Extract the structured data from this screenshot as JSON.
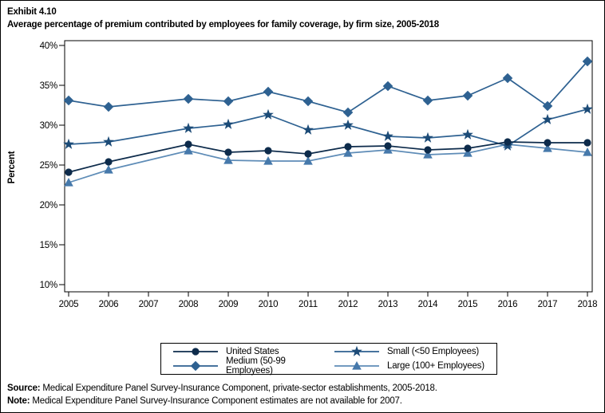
{
  "title": {
    "exhibit": "Exhibit 4.10",
    "text": "Average percentage of premium contributed by employees for family coverage, by firm size, 2005-2018"
  },
  "chart_data": {
    "type": "line",
    "x": [
      2005,
      2006,
      2007,
      2008,
      2009,
      2010,
      2011,
      2012,
      2013,
      2014,
      2015,
      2016,
      2017,
      2018
    ],
    "xlabel": "",
    "ylabel": "Percent",
    "ylim": [
      10,
      40
    ],
    "ytick_step": 5,
    "ytick_labels": [
      "10%",
      "15%",
      "20%",
      "25%",
      "30%",
      "35%",
      "40%"
    ],
    "grid": false,
    "legend_position": "bottom-center",
    "missing_note": "2007 estimates not available; lines connect 2006 to 2008",
    "series": [
      {
        "name": "United States",
        "marker": "circle",
        "color": "#0d2b4b",
        "line_color": "#0d2b4b",
        "values": [
          24.1,
          25.4,
          null,
          27.6,
          26.6,
          26.8,
          26.4,
          27.3,
          27.4,
          26.9,
          27.1,
          27.9,
          27.8,
          27.8
        ]
      },
      {
        "name": "Small (<50 Employees)",
        "marker": "star",
        "color": "#1c4b77",
        "line_color": "#2e6191",
        "values": [
          27.6,
          27.9,
          null,
          29.6,
          30.1,
          31.3,
          29.4,
          30.0,
          28.6,
          28.4,
          28.8,
          27.4,
          30.7,
          32.0
        ]
      },
      {
        "name": "Medium (50-99 Employees)",
        "marker": "diamond",
        "color": "#2e6191",
        "line_color": "#2e6191",
        "values": [
          33.1,
          32.3,
          null,
          33.3,
          33.0,
          34.2,
          33.0,
          31.6,
          34.9,
          33.1,
          33.7,
          35.9,
          32.4,
          38.0
        ]
      },
      {
        "name": "Large (100+ Employees)",
        "marker": "triangle",
        "color": "#4679ab",
        "line_color": "#5e8cb7",
        "values": [
          22.8,
          24.4,
          null,
          26.8,
          25.6,
          25.5,
          25.5,
          26.5,
          26.9,
          26.3,
          26.5,
          27.6,
          27.1,
          26.6
        ]
      }
    ]
  },
  "legend": {
    "grid_rows": [
      [
        "United States",
        "Small (<50 Employees)"
      ],
      [
        "Medium (50-99 Employees)",
        "Large (100+ Employees)"
      ]
    ]
  },
  "footer": {
    "source_label": "Source:",
    "source_text": " Medical Expenditure Panel Survey-Insurance Component, private-sector establishments, 2005-2018.",
    "note_label": "Note:",
    "note_text": " Medical Expenditure Panel Survey-Insurance Component estimates are not available for 2007."
  }
}
